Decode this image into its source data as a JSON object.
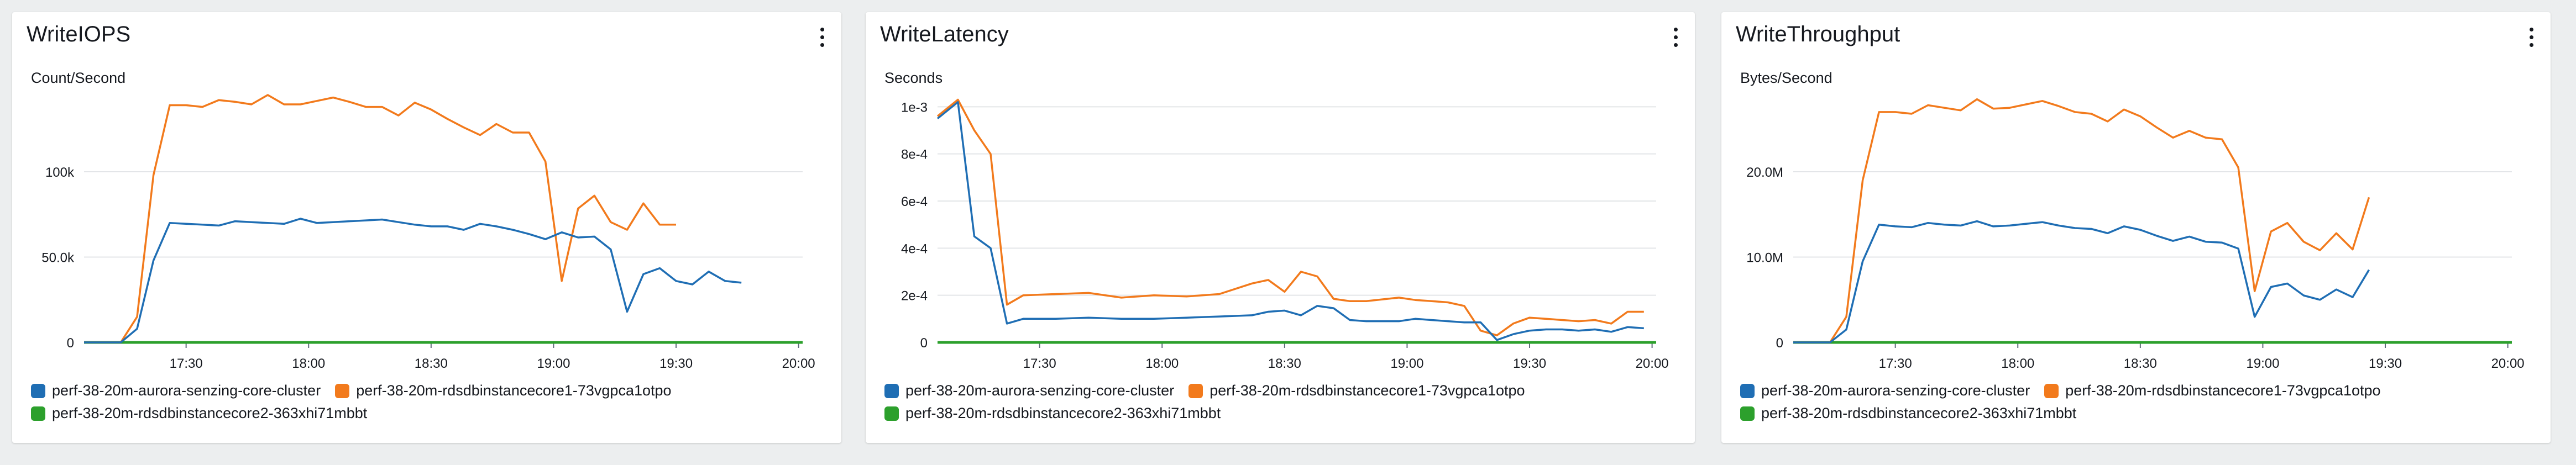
{
  "colors": {
    "blue": "#1f6eb4",
    "orange": "#f27a1c",
    "green": "#2ca02c",
    "grid": "#e3e5e8",
    "axis": "#16191f"
  },
  "legend": [
    {
      "name": "perf-38-20m-aurora-senzing-core-cluster",
      "color": "#1f6eb4"
    },
    {
      "name": "perf-38-20m-rdsdbinstancecore1-73vgpca1otpo",
      "color": "#f27a1c"
    },
    {
      "name": "perf-38-20m-rdsdbinstancecore2-363xhi71mbbt",
      "color": "#2ca02c"
    }
  ],
  "widgets": [
    {
      "title": "WriteIOPS",
      "unit": "Count/Second",
      "menu_icon": "kebab-menu-icon"
    },
    {
      "title": "WriteLatency",
      "unit": "Seconds",
      "menu_icon": "kebab-menu-icon"
    },
    {
      "title": "WriteThroughput",
      "unit": "Bytes/Second",
      "menu_icon": "kebab-menu-icon"
    }
  ],
  "chart_data": [
    {
      "type": "line",
      "title": "WriteIOPS",
      "ylabel": "Count/Second",
      "ylim": [
        0,
        145000
      ],
      "yticks": [
        0,
        50000,
        100000
      ],
      "ytick_labels": [
        "0",
        "50.0k",
        "100k"
      ],
      "xlim": [
        "17:05",
        "20:01"
      ],
      "xticks": [
        "17:30",
        "18:00",
        "18:30",
        "19:00",
        "19:30",
        "20:00"
      ],
      "grid": true,
      "legend_position": "bottom",
      "series": [
        {
          "name": "perf-38-20m-aurora-senzing-core-cluster",
          "color": "#1f6eb4",
          "x": [
            "17:05",
            "17:10",
            "17:14",
            "17:18",
            "17:22",
            "17:26",
            "17:30",
            "17:34",
            "17:38",
            "17:42",
            "17:46",
            "17:50",
            "17:54",
            "17:58",
            "18:02",
            "18:06",
            "18:10",
            "18:14",
            "18:18",
            "18:22",
            "18:26",
            "18:30",
            "18:34",
            "18:38",
            "18:42",
            "18:46",
            "18:50",
            "18:54",
            "18:58",
            "19:02",
            "19:06",
            "19:10",
            "19:14",
            "19:18",
            "19:22",
            "19:26",
            "19:30",
            "19:34",
            "19:38",
            "19:42",
            "19:46",
            "19:50",
            "19:54",
            "19:58"
          ],
          "y": [
            0,
            0,
            0,
            8000,
            48000,
            70000,
            69500,
            69000,
            68500,
            71000,
            70500,
            70000,
            69500,
            72500,
            70000,
            70500,
            71000,
            71500,
            72000,
            70500,
            69000,
            68000,
            68000,
            66000,
            69500,
            68000,
            66000,
            63500,
            60500,
            64500,
            61500,
            62000,
            54500,
            18000,
            40000,
            43500,
            36000,
            34000,
            41500,
            36000,
            35000,
            0,
            0,
            0
          ]
        },
        {
          "name": "perf-38-20m-rdsdbinstancecore1-73vgpca1otpo",
          "color": "#f27a1c",
          "x": [
            "17:05",
            "17:10",
            "17:14",
            "17:18",
            "17:22",
            "17:26",
            "17:30",
            "17:34",
            "17:38",
            "17:42",
            "17:46",
            "17:50",
            "17:54",
            "17:58",
            "18:02",
            "18:06",
            "18:10",
            "18:14",
            "18:18",
            "18:22",
            "18:26",
            "18:30",
            "18:34",
            "18:38",
            "18:42",
            "18:46",
            "18:50",
            "18:54",
            "18:58",
            "19:02",
            "19:06",
            "19:10",
            "19:14",
            "19:18",
            "19:22",
            "19:26",
            "19:30",
            "19:34",
            "19:38",
            "19:42",
            "19:46",
            "19:50",
            "19:54",
            "19:58"
          ],
          "y": [
            0,
            0,
            0,
            15000,
            98000,
            139000,
            139000,
            138000,
            142000,
            141000,
            139500,
            145000,
            139500,
            139500,
            141500,
            143500,
            141000,
            138000,
            138000,
            133000,
            140500,
            136500,
            131000,
            126000,
            121500,
            128000,
            123000,
            123000,
            106000,
            36000,
            78500,
            86000,
            70500,
            66000,
            81500,
            69000,
            69000,
            0,
            0,
            0,
            0,
            0,
            0,
            0
          ]
        },
        {
          "name": "perf-38-20m-rdsdbinstancecore2-363xhi71mbbt",
          "color": "#2ca02c",
          "x": [
            "17:05",
            "20:01"
          ],
          "y": [
            0,
            0
          ]
        }
      ]
    },
    {
      "type": "line",
      "title": "WriteLatency",
      "ylabel": "Seconds",
      "ylim": [
        0,
        0.00105
      ],
      "yticks": [
        0,
        0.0002,
        0.0004,
        0.0006,
        0.0008,
        0.001
      ],
      "ytick_labels": [
        "0",
        "2e-4",
        "4e-4",
        "6e-4",
        "8e-4",
        "1e-3"
      ],
      "xlim": [
        "17:05",
        "20:01"
      ],
      "xticks": [
        "17:30",
        "18:00",
        "18:30",
        "19:00",
        "19:30",
        "20:00"
      ],
      "grid": true,
      "legend_position": "bottom",
      "series": [
        {
          "name": "perf-38-20m-aurora-senzing-core-cluster",
          "color": "#1f6eb4",
          "x": [
            "17:05",
            "17:10",
            "17:14",
            "17:18",
            "17:22",
            "17:26",
            "17:34",
            "17:42",
            "17:50",
            "17:58",
            "18:06",
            "18:14",
            "18:22",
            "18:26",
            "18:30",
            "18:34",
            "18:38",
            "18:42",
            "18:46",
            "18:50",
            "18:58",
            "19:02",
            "19:06",
            "19:10",
            "19:14",
            "19:18",
            "19:22",
            "19:26",
            "19:30",
            "19:34",
            "19:38",
            "19:42",
            "19:46",
            "19:50",
            "19:54",
            "19:58"
          ],
          "y": [
            0.00095,
            0.00102,
            0.00045,
            0.0004,
            8e-05,
            0.0001,
            0.0001,
            0.000105,
            0.0001,
            0.0001,
            0.000105,
            0.00011,
            0.000115,
            0.00013,
            0.000135,
            0.000115,
            0.000155,
            0.000145,
            9.5e-05,
            9e-05,
            9e-05,
            0.0001,
            9.5e-05,
            9e-05,
            8.5e-05,
            8.5e-05,
            1e-05,
            3.5e-05,
            5e-05,
            5.5e-05,
            5.5e-05,
            5e-05,
            5.5e-05,
            4.5e-05,
            6.5e-05,
            6e-05
          ]
        },
        {
          "name": "perf-38-20m-rdsdbinstancecore1-73vgpca1otpo",
          "color": "#f27a1c",
          "x": [
            "17:05",
            "17:10",
            "17:14",
            "17:18",
            "17:22",
            "17:26",
            "17:34",
            "17:42",
            "17:50",
            "17:58",
            "18:06",
            "18:14",
            "18:22",
            "18:26",
            "18:30",
            "18:34",
            "18:38",
            "18:42",
            "18:46",
            "18:50",
            "18:58",
            "19:02",
            "19:06",
            "19:10",
            "19:14",
            "19:18",
            "19:22",
            "19:26",
            "19:30",
            "19:34",
            "19:38",
            "19:42",
            "19:46",
            "19:50",
            "19:54",
            "19:58"
          ],
          "y": [
            0.00096,
            0.00103,
            0.0009,
            0.0008,
            0.00016,
            0.0002,
            0.000205,
            0.00021,
            0.00019,
            0.0002,
            0.000195,
            0.000205,
            0.00025,
            0.000265,
            0.000215,
            0.0003,
            0.00028,
            0.000185,
            0.000175,
            0.000175,
            0.00019,
            0.00018,
            0.000175,
            0.00017,
            0.000155,
            5e-05,
            3e-05,
            8e-05,
            0.000105,
            0.0001,
            9.5e-05,
            9e-05,
            9.5e-05,
            8e-05,
            0.00013,
            0.00013
          ]
        },
        {
          "name": "perf-38-20m-rdsdbinstancecore2-363xhi71mbbt",
          "color": "#2ca02c",
          "x": [
            "17:05",
            "20:01"
          ],
          "y": [
            0,
            0
          ]
        }
      ]
    },
    {
      "type": "line",
      "title": "WriteThroughput",
      "ylabel": "Bytes/Second",
      "ylim": [
        0,
        29000000
      ],
      "yticks": [
        0,
        10000000,
        20000000
      ],
      "ytick_labels": [
        "0",
        "10.0M",
        "20.0M"
      ],
      "xlim": [
        "17:05",
        "20:01"
      ],
      "xticks": [
        "17:30",
        "18:00",
        "18:30",
        "19:00",
        "19:30",
        "20:00"
      ],
      "grid": true,
      "legend_position": "bottom",
      "series": [
        {
          "name": "perf-38-20m-aurora-senzing-core-cluster",
          "color": "#1f6eb4",
          "x": [
            "17:05",
            "17:10",
            "17:14",
            "17:18",
            "17:22",
            "17:26",
            "17:30",
            "17:34",
            "17:38",
            "17:42",
            "17:46",
            "17:50",
            "17:54",
            "17:58",
            "18:02",
            "18:06",
            "18:10",
            "18:14",
            "18:18",
            "18:22",
            "18:26",
            "18:30",
            "18:34",
            "18:38",
            "18:42",
            "18:46",
            "18:50",
            "18:54",
            "18:58",
            "19:02",
            "19:06",
            "19:10",
            "19:14",
            "19:18",
            "19:22",
            "19:26",
            "19:30",
            "19:34",
            "19:38",
            "19:42",
            "19:46",
            "19:50",
            "19:54",
            "19:58"
          ],
          "y": [
            0,
            0,
            0,
            1500000,
            9500000,
            13800000,
            13600000,
            13500000,
            14000000,
            13800000,
            13700000,
            14200000,
            13600000,
            13700000,
            13900000,
            14100000,
            13700000,
            13400000,
            13300000,
            12800000,
            13600000,
            13200000,
            12500000,
            11900000,
            12400000,
            11800000,
            11700000,
            11000000,
            3000000,
            6500000,
            6900000,
            5500000,
            5000000,
            6200000,
            5300000,
            8500000,
            0,
            0,
            0,
            0,
            0,
            0,
            0,
            0
          ]
        },
        {
          "name": "perf-38-20m-rdsdbinstancecore1-73vgpca1otpo",
          "color": "#f27a1c",
          "x": [
            "17:05",
            "17:10",
            "17:14",
            "17:18",
            "17:22",
            "17:26",
            "17:30",
            "17:34",
            "17:38",
            "17:42",
            "17:46",
            "17:50",
            "17:54",
            "17:58",
            "18:02",
            "18:06",
            "18:10",
            "18:14",
            "18:18",
            "18:22",
            "18:26",
            "18:30",
            "18:34",
            "18:38",
            "18:42",
            "18:46",
            "18:50",
            "18:54",
            "18:58",
            "19:02",
            "19:06",
            "19:10",
            "19:14",
            "19:18",
            "19:22",
            "19:26",
            "19:30",
            "19:34",
            "19:38",
            "19:42",
            "19:46",
            "19:50",
            "19:54",
            "19:58"
          ],
          "y": [
            0,
            0,
            0,
            3000000,
            19000000,
            27000000,
            27000000,
            26800000,
            27800000,
            27500000,
            27200000,
            28500000,
            27400000,
            27500000,
            27900000,
            28300000,
            27700000,
            27000000,
            26800000,
            25900000,
            27300000,
            26500000,
            25200000,
            24000000,
            24800000,
            24000000,
            23800000,
            20500000,
            6000000,
            13000000,
            14000000,
            11800000,
            10800000,
            12800000,
            10900000,
            17000000,
            0,
            0,
            0,
            0,
            0,
            0,
            0,
            0
          ]
        },
        {
          "name": "perf-38-20m-rdsdbinstancecore2-363xhi71mbbt",
          "color": "#2ca02c",
          "x": [
            "17:05",
            "20:01"
          ],
          "y": [
            0,
            0
          ]
        }
      ]
    }
  ]
}
